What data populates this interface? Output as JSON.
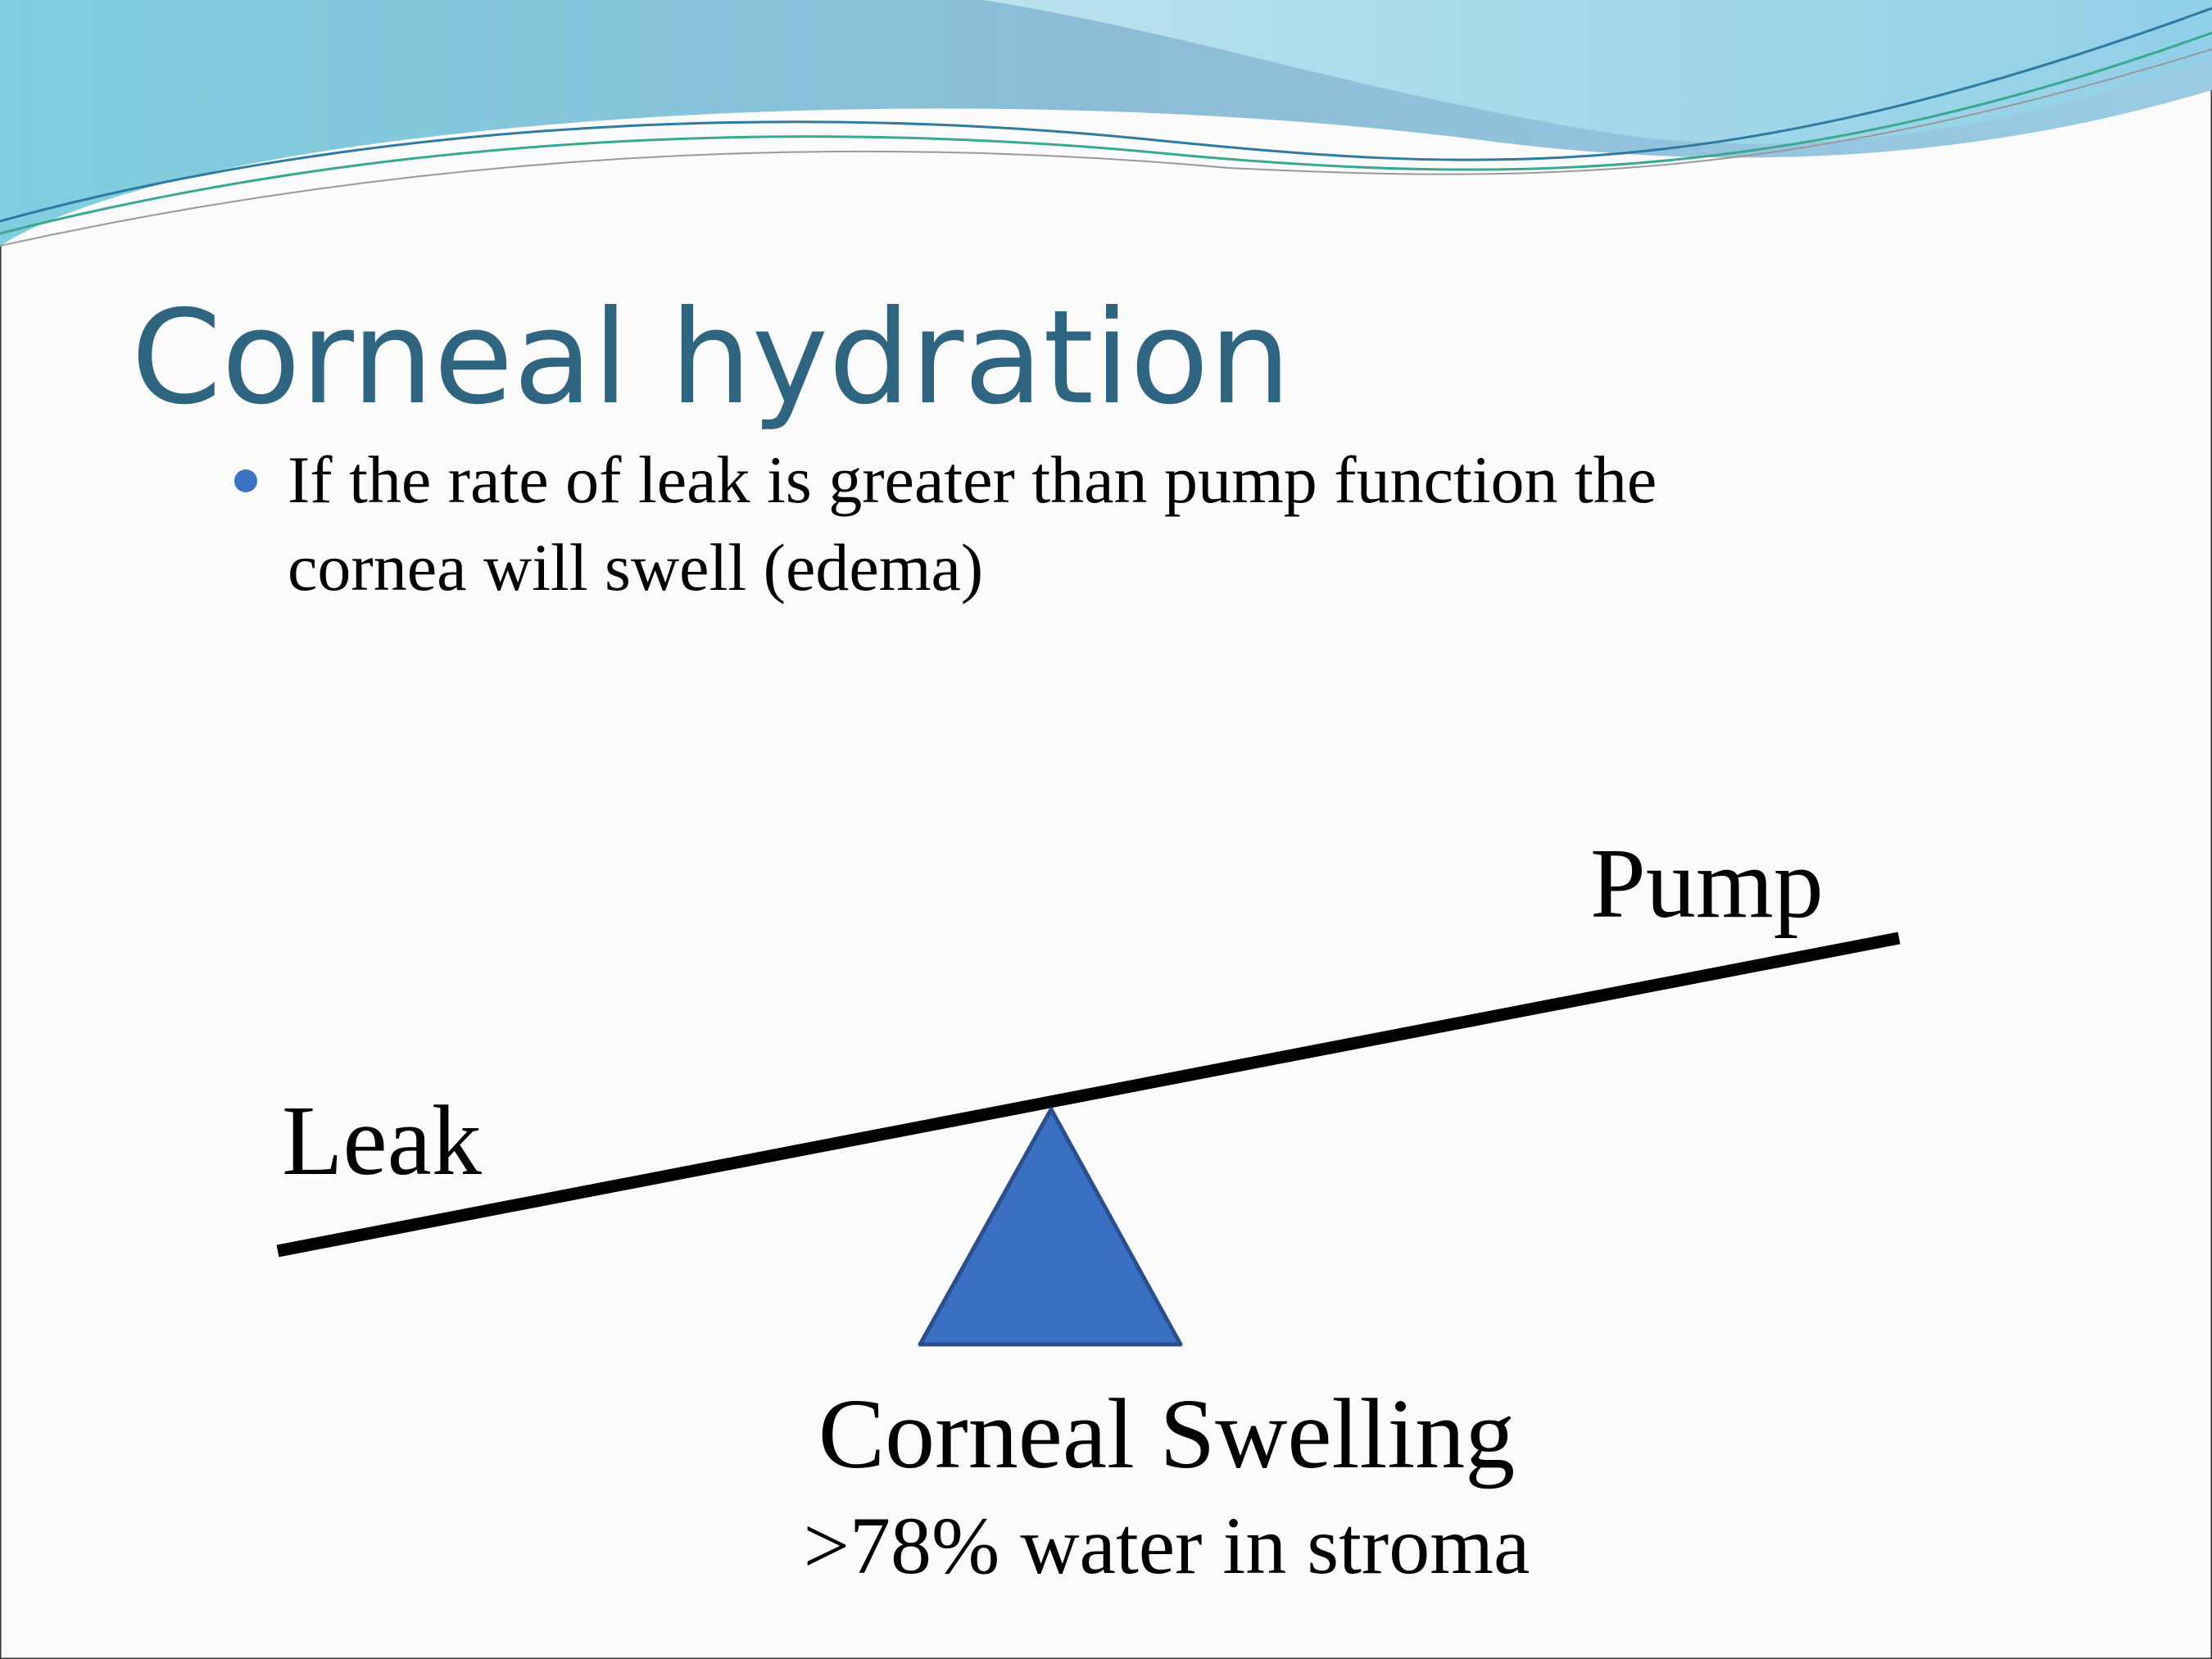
{
  "slide": {
    "title": "Corneal hydration",
    "bullets": [
      [
        "If the rate of leak is greater than pump function the",
        "cornea will swell (edema)"
      ]
    ],
    "diagram": {
      "left_label": "Leak",
      "right_label": "Pump",
      "caption": "Corneal Swelling",
      "subcaption": ">78% water in stroma"
    }
  }
}
